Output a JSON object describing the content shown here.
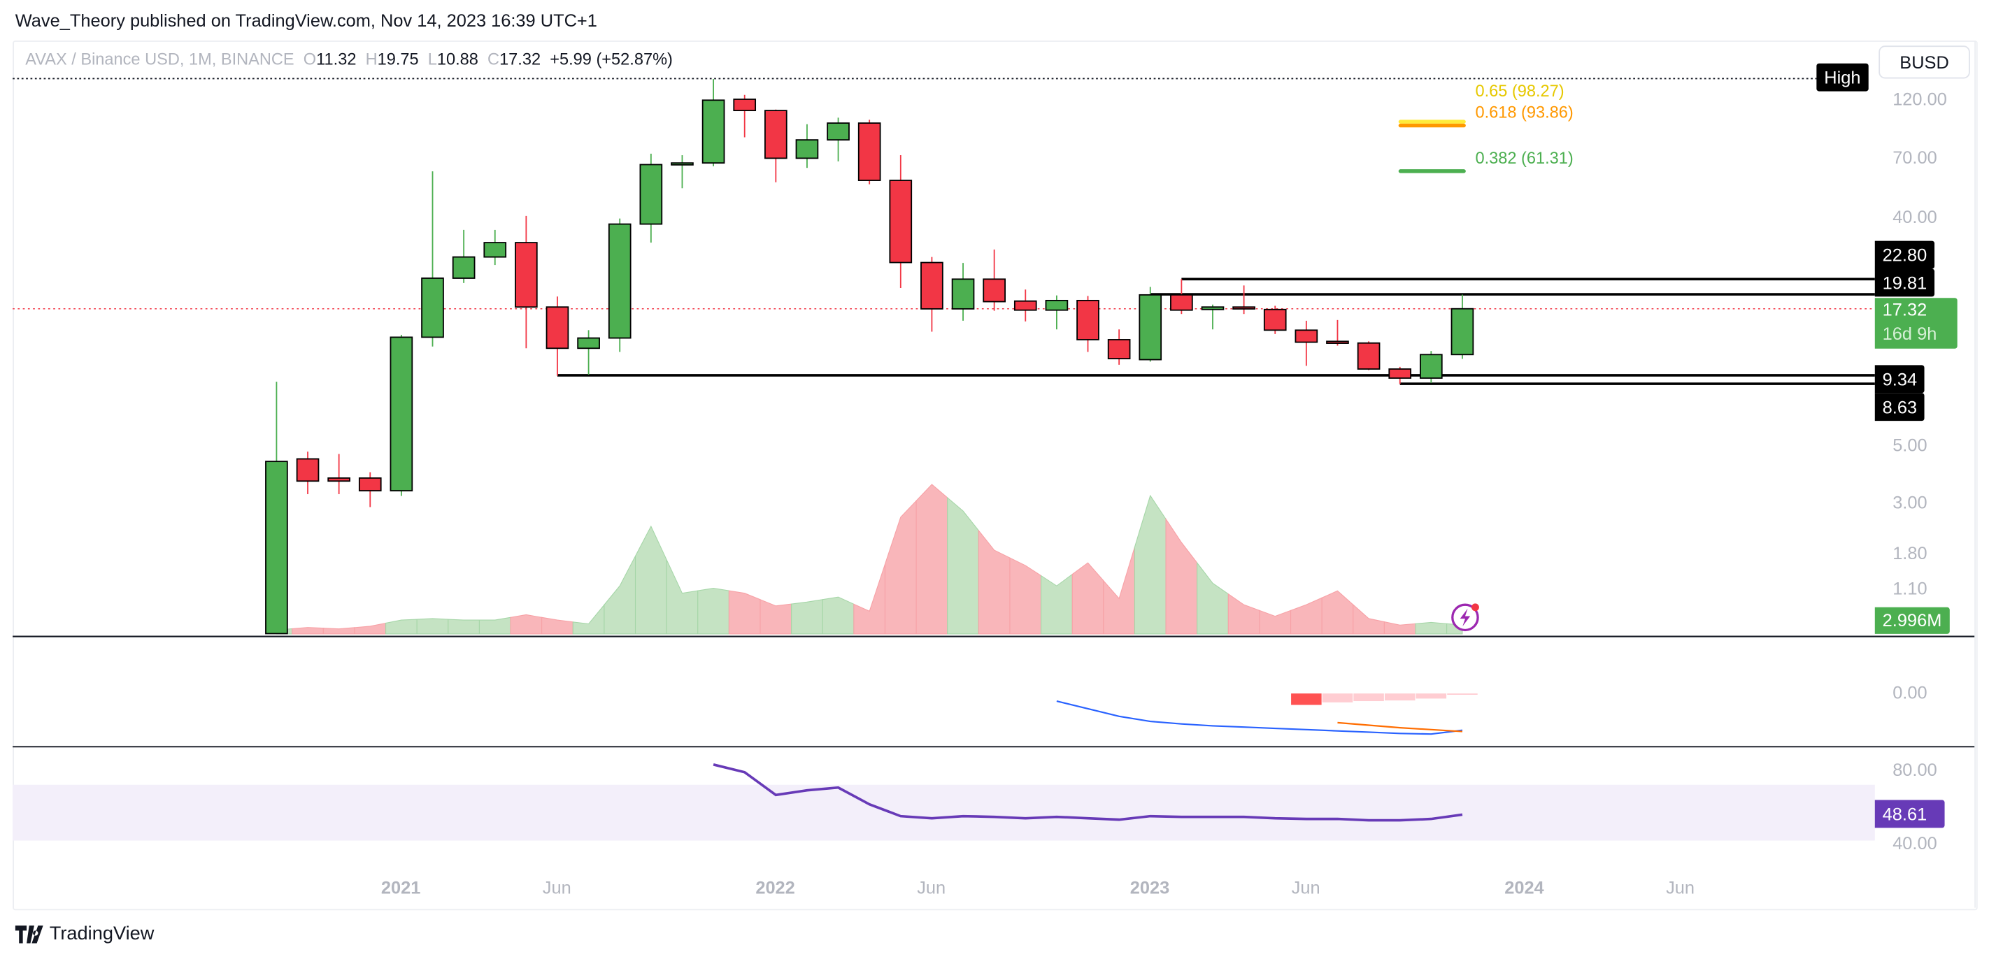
{
  "header": {
    "published": "Wave_Theory published on TradingView.com, Nov 14, 2023 16:39 UTC+1"
  },
  "legend": {
    "symbol": "AVAX / Binance USD, 1M, BINANCE",
    "o_label": "O",
    "o": "11.32",
    "h_label": "H",
    "h": "19.75",
    "l_label": "L",
    "l": "10.88",
    "c_label": "C",
    "c": "17.32",
    "change": "+5.99 (+52.87%)"
  },
  "currency_button": "BUSD",
  "price_axis": [
    "120.00",
    "70.00",
    "40.00",
    "5.00",
    "3.00",
    "1.80",
    "1.10"
  ],
  "price_tags": {
    "high_label": "High",
    "level_1": "22.80",
    "level_2": "19.81",
    "last_price": "17.32",
    "countdown": "16d 9h",
    "level_3": "9.34",
    "level_4": "8.63",
    "volume": "2.996M",
    "rsi": "48.61"
  },
  "fib": [
    {
      "label": "0.65 (98.27)",
      "color": "#ffeb3b"
    },
    {
      "label": "0.618 (93.86)",
      "color": "#ff9800"
    },
    {
      "label": "0.382 (61.31)",
      "color": "#4caf50"
    }
  ],
  "macd_axis": "0.00",
  "rsi_axis": [
    "80.00",
    "40.00"
  ],
  "time_axis": [
    {
      "t": "2021",
      "year": true,
      "m": 0
    },
    {
      "t": "Jun",
      "year": false,
      "m": 5
    },
    {
      "t": "2022",
      "year": true,
      "m": 12
    },
    {
      "t": "Jun",
      "year": false,
      "m": 17
    },
    {
      "t": "2023",
      "year": true,
      "m": 24
    },
    {
      "t": "Jun",
      "year": false,
      "m": 29
    },
    {
      "t": "2024",
      "year": true,
      "m": 36
    },
    {
      "t": "Jun",
      "year": false,
      "m": 41
    }
  ],
  "footer": {
    "brand": "TradingView"
  },
  "colors": {
    "up": "#4caf50",
    "down": "#f23645",
    "vol_up": "#c5e3c3",
    "vol_down": "#f9b6ba",
    "macd": "#2962ff",
    "signal": "#ff6d00",
    "rsi": "#673ab7"
  },
  "chart_data": {
    "type": "candlestick",
    "title": "AVAX / Binance USD, 1M, BINANCE",
    "scale": "log",
    "ylim": [
      0.85,
      150
    ],
    "start_month": "2020-09",
    "ohlc": [
      [
        0.85,
        8.8,
        0.85,
        4.2
      ],
      [
        4.3,
        4.6,
        3.1,
        3.5
      ],
      [
        3.6,
        4.5,
        3.1,
        3.5
      ],
      [
        3.6,
        3.8,
        2.75,
        3.2
      ],
      [
        3.2,
        13.6,
        3.05,
        13.3
      ],
      [
        13.3,
        62,
        12.2,
        23
      ],
      [
        23,
        36,
        22,
        28
      ],
      [
        28,
        36,
        26,
        32
      ],
      [
        32,
        41,
        12,
        17.6
      ],
      [
        17.6,
        19.4,
        9.3,
        12
      ],
      [
        12,
        14.2,
        9.4,
        13.2
      ],
      [
        13.2,
        40,
        11.6,
        38
      ],
      [
        38,
        73,
        32,
        66
      ],
      [
        66,
        72,
        53,
        67
      ],
      [
        67,
        146,
        65,
        120
      ],
      [
        121,
        126,
        85,
        109
      ],
      [
        109,
        110,
        56,
        70
      ],
      [
        70,
        96,
        64,
        83
      ],
      [
        83,
        102,
        68,
        97
      ],
      [
        97,
        100,
        55,
        57
      ],
      [
        57,
        72,
        21,
        26.6
      ],
      [
        26.6,
        28,
        14,
        17.3
      ],
      [
        17.3,
        26.5,
        15.5,
        22.8
      ],
      [
        22.8,
        30,
        17,
        18.5
      ],
      [
        18.6,
        20.7,
        15.4,
        17.1
      ],
      [
        17.1,
        19.6,
        14.3,
        18.7
      ],
      [
        18.7,
        19.5,
        11.6,
        13
      ],
      [
        13,
        14.3,
        10.3,
        10.9
      ],
      [
        10.8,
        21.2,
        10.6,
        19.7
      ],
      [
        19.7,
        22.8,
        16.5,
        17.1
      ],
      [
        17.2,
        18,
        14.3,
        17.6
      ],
      [
        17.6,
        21.5,
        16.5,
        17.3
      ],
      [
        17.2,
        17.8,
        13.7,
        14.2
      ],
      [
        14.2,
        15.5,
        10.2,
        12.7
      ],
      [
        12.8,
        15.6,
        12.3,
        12.6
      ],
      [
        12.6,
        12.8,
        9.8,
        9.9
      ],
      [
        9.9,
        10.1,
        8.63,
        9.1
      ],
      [
        9.1,
        11.7,
        8.7,
        11.32
      ],
      [
        11.32,
        19.75,
        10.88,
        17.32
      ]
    ],
    "horizontal_levels": [
      {
        "value": 22.8,
        "from_index": 29
      },
      {
        "value": 19.81,
        "from_index": 28
      },
      {
        "value": 9.34,
        "from_index": 9
      },
      {
        "value": 8.63,
        "from_index": 36
      }
    ],
    "volume_m": [
      1.3,
      2.2,
      1.7,
      2.6,
      4.7,
      5.2,
      4.7,
      4.7,
      6.5,
      4.7,
      3.4,
      16.3,
      36.5,
      13.8,
      15.5,
      13.8,
      9.5,
      10.8,
      12.5,
      7.7,
      39.6,
      50.7,
      41.7,
      28.4,
      23.2,
      16.3,
      24.1,
      12,
      46.9,
      31,
      17.2,
      9.9,
      6,
      9.9,
      14.6,
      5.2,
      3,
      3.9,
      2.996
    ],
    "macd": {
      "start_index": 25,
      "line": [
        -0.6,
        -1.2,
        -1.8,
        -2.2,
        -2.4,
        -2.55,
        -2.65,
        -2.75,
        -2.85,
        -2.95,
        -3.05,
        -3.15,
        -3.2,
        -2.9
      ],
      "signal_start_index": 34,
      "signal": [
        -2.3,
        -2.5,
        -2.7,
        -2.85,
        -3.0
      ],
      "hist_start_index": 33,
      "hist": [
        -0.9,
        -0.7,
        -0.6,
        -0.55,
        -0.4,
        -0.1
      ]
    },
    "rsi": {
      "start_index": 14,
      "values": [
        84.5,
        79,
        62.7,
        66,
        68,
        56,
        47.5,
        46,
        47.5,
        47,
        46,
        47,
        46,
        45,
        47.5,
        47,
        47,
        47,
        46,
        45.5,
        45.5,
        44.5,
        44.5,
        45.5,
        48.61
      ],
      "band": [
        30,
        70
      ]
    }
  }
}
